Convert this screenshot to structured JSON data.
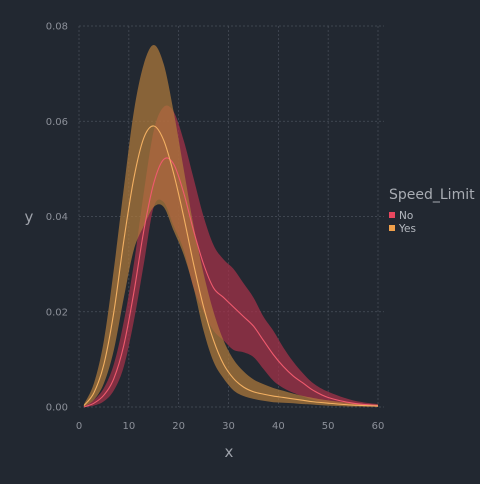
{
  "chart_data": {
    "type": "area",
    "xlabel": "x",
    "ylabel": "y",
    "xlim": [
      0,
      60
    ],
    "ylim": [
      0,
      0.08
    ],
    "x_ticks": [
      0,
      10,
      20,
      30,
      40,
      50,
      60
    ],
    "y_ticks": [
      0.0,
      0.02,
      0.04,
      0.06,
      0.08
    ],
    "x_tick_labels": [
      "0",
      "10",
      "20",
      "30",
      "40",
      "50",
      "60"
    ],
    "y_tick_labels": [
      "0.00",
      "0.02",
      "0.04",
      "0.06",
      "0.08"
    ],
    "grid": true,
    "legend": {
      "title": "Speed_Limit",
      "placement": "right"
    },
    "x": [
      1,
      3,
      5,
      7,
      9,
      11,
      13,
      15,
      17,
      19,
      21,
      23,
      25,
      27,
      29,
      31,
      33,
      35,
      37,
      39,
      41,
      43,
      45,
      47,
      50,
      55,
      60
    ],
    "series": [
      {
        "name": "No",
        "color": "#e8475f",
        "band_color": "#a8324a",
        "line_color": "#f05a6e",
        "mean": [
          0.0,
          0.0008,
          0.0025,
          0.006,
          0.013,
          0.024,
          0.037,
          0.047,
          0.052,
          0.051,
          0.045,
          0.037,
          0.03,
          0.025,
          0.023,
          0.021,
          0.019,
          0.017,
          0.014,
          0.011,
          0.0085,
          0.0065,
          0.005,
          0.0035,
          0.002,
          0.0008,
          0.0003
        ],
        "lower": [
          0.0,
          0.0003,
          0.0012,
          0.0035,
          0.0085,
          0.018,
          0.03,
          0.042,
          0.043,
          0.038,
          0.033,
          0.025,
          0.02,
          0.016,
          0.014,
          0.012,
          0.0115,
          0.0105,
          0.008,
          0.0055,
          0.004,
          0.003,
          0.0022,
          0.0015,
          0.0008,
          0.0003,
          0.0001
        ],
        "upper": [
          0.0002,
          0.0015,
          0.004,
          0.009,
          0.018,
          0.03,
          0.045,
          0.058,
          0.063,
          0.062,
          0.056,
          0.048,
          0.04,
          0.034,
          0.031,
          0.029,
          0.026,
          0.023,
          0.019,
          0.016,
          0.0125,
          0.0095,
          0.007,
          0.005,
          0.0032,
          0.0014,
          0.0006
        ]
      },
      {
        "name": "Yes",
        "color": "#f0a04b",
        "band_color": "#b07a3c",
        "line_color": "#f3b062",
        "mean": [
          0.0003,
          0.003,
          0.009,
          0.02,
          0.035,
          0.048,
          0.0565,
          0.059,
          0.056,
          0.049,
          0.04,
          0.03,
          0.021,
          0.014,
          0.009,
          0.006,
          0.0042,
          0.0032,
          0.0027,
          0.0023,
          0.002,
          0.0017,
          0.0014,
          0.0011,
          0.0008,
          0.0004,
          0.0002
        ],
        "lower": [
          0.0001,
          0.0015,
          0.005,
          0.012,
          0.023,
          0.033,
          0.038,
          0.042,
          0.042,
          0.037,
          0.032,
          0.025,
          0.016,
          0.0095,
          0.006,
          0.0035,
          0.0023,
          0.0017,
          0.0013,
          0.001,
          0.0009,
          0.0008,
          0.0006,
          0.0005,
          0.0003,
          0.0001,
          0.0
        ],
        "upper": [
          0.0006,
          0.005,
          0.014,
          0.029,
          0.046,
          0.062,
          0.072,
          0.076,
          0.072,
          0.062,
          0.05,
          0.038,
          0.028,
          0.02,
          0.014,
          0.01,
          0.0075,
          0.0058,
          0.0048,
          0.004,
          0.0034,
          0.0028,
          0.0023,
          0.0019,
          0.0014,
          0.0008,
          0.0005
        ]
      }
    ]
  },
  "colors": {
    "background": "#222831",
    "grid": "#4a505b",
    "text": "#8c9099"
  }
}
